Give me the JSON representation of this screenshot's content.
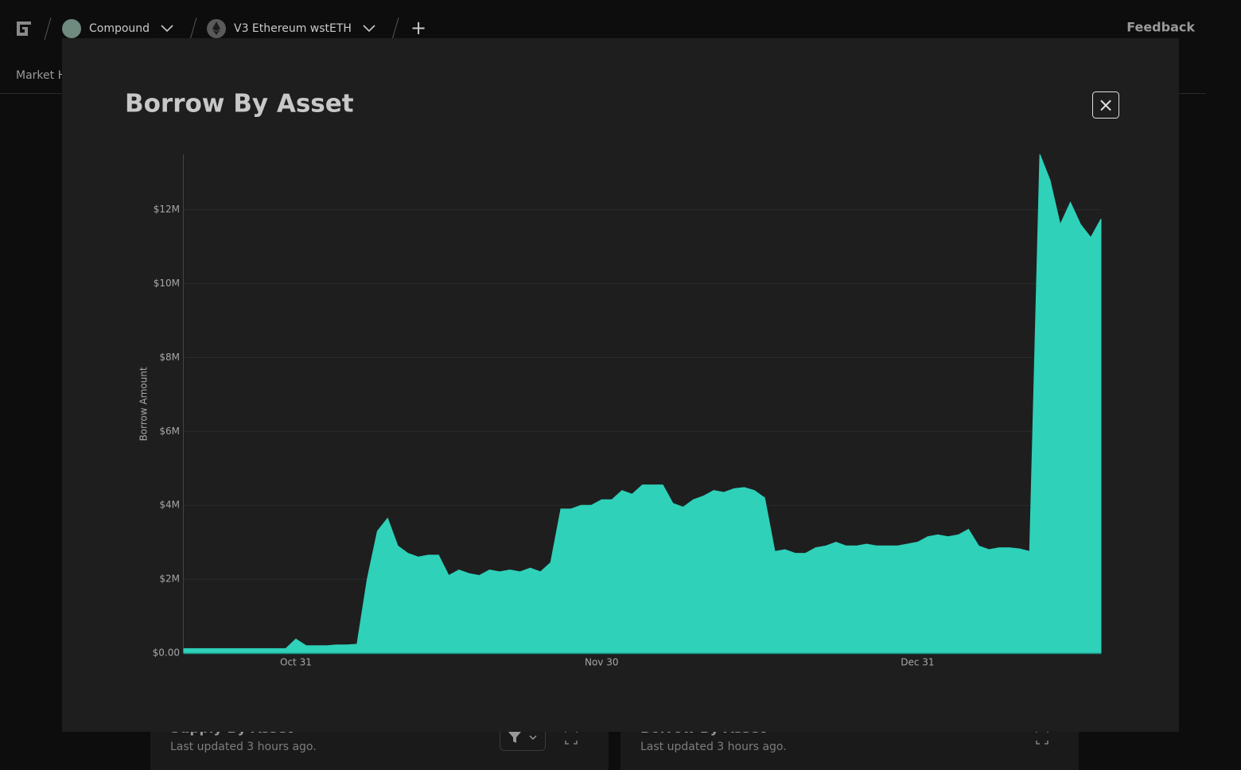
{
  "header": {
    "protocol": "Compound",
    "market": "V3 Ethereum wstETH",
    "add": "+",
    "feedback": "Feedback"
  },
  "tabs": [
    "Market H"
  ],
  "cards": [
    {
      "title": "Supply By Asset",
      "updated": "Last updated 3 hours ago."
    },
    {
      "title": "Borrow By Asset",
      "updated": "Last updated 3 hours ago."
    }
  ],
  "modal": {
    "close": "×"
  },
  "chart_data": {
    "type": "area",
    "title": "Borrow By Asset",
    "y_label": "Borrow Amount",
    "color": "#2fd1b9",
    "grid": true,
    "categories": [
      null,
      null,
      null,
      null,
      null,
      null,
      null,
      null,
      null,
      null,
      null,
      "Oct 31",
      null,
      null,
      null,
      null,
      null,
      null,
      null,
      null,
      null,
      null,
      null,
      null,
      null,
      null,
      null,
      null,
      null,
      null,
      null,
      null,
      null,
      null,
      null,
      null,
      null,
      null,
      null,
      null,
      null,
      "Nov 30",
      null,
      null,
      null,
      null,
      null,
      null,
      null,
      null,
      null,
      null,
      null,
      null,
      null,
      null,
      null,
      null,
      null,
      null,
      null,
      null,
      null,
      null,
      null,
      null,
      null,
      null,
      null,
      null,
      null,
      null,
      "Dec 31",
      null,
      null,
      null,
      null,
      null,
      null,
      null,
      null,
      null,
      null,
      null,
      null,
      null,
      null,
      null,
      null,
      null,
      null
    ],
    "values": [
      120000,
      120000,
      120000,
      120000,
      120000,
      120000,
      120000,
      120000,
      120000,
      120000,
      120000,
      380000,
      200000,
      200000,
      200000,
      220000,
      220000,
      240000,
      2000000,
      3300000,
      3650000,
      2900000,
      2700000,
      2600000,
      2650000,
      2650000,
      2100000,
      2250000,
      2150000,
      2100000,
      2250000,
      2200000,
      2250000,
      2200000,
      2300000,
      2200000,
      2450000,
      3900000,
      3900000,
      4000000,
      4000000,
      4150000,
      4150000,
      4400000,
      4300000,
      4550000,
      4550000,
      4550000,
      4050000,
      3950000,
      4150000,
      4250000,
      4400000,
      4350000,
      4450000,
      4480000,
      4400000,
      4200000,
      2750000,
      2800000,
      2700000,
      2700000,
      2850000,
      2900000,
      3000000,
      2900000,
      2900000,
      2950000,
      2900000,
      2900000,
      2900000,
      2950000,
      3000000,
      3150000,
      3200000,
      3150000,
      3200000,
      3350000,
      2900000,
      2800000,
      2850000,
      2850000,
      2820000,
      2750000,
      13500000,
      12800000,
      11600000,
      12200000,
      11600000,
      11250000,
      11750000
    ],
    "ylim": [
      0,
      13500000
    ],
    "yticks": [
      {
        "value": 0,
        "label": "$0.00"
      },
      {
        "value": 2000000,
        "label": "$2M"
      },
      {
        "value": 4000000,
        "label": "$4M"
      },
      {
        "value": 6000000,
        "label": "$6M"
      },
      {
        "value": 8000000,
        "label": "$8M"
      },
      {
        "value": 10000000,
        "label": "$10M"
      },
      {
        "value": 12000000,
        "label": "$12M"
      }
    ]
  }
}
